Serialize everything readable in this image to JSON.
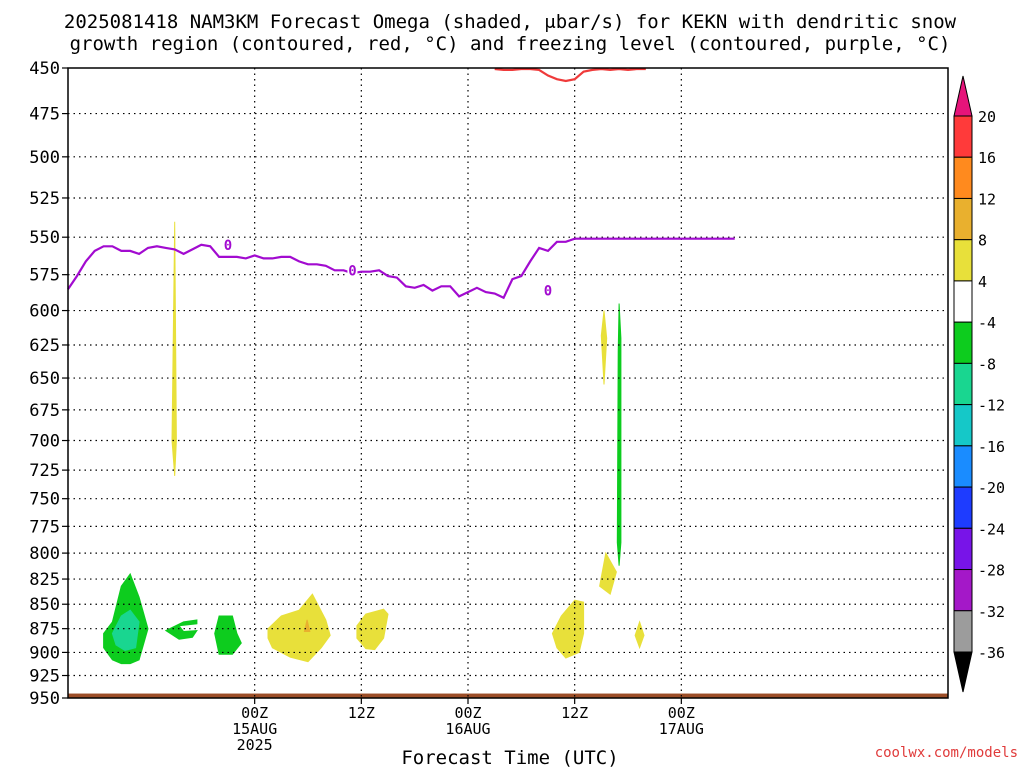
{
  "chart_data": {
    "type": "heatmap",
    "title_line1": "2025081418 NAM3KM Forecast Omega (shaded, μbar/s) for KEKN with dendritic snow",
    "title_line2": "growth region (contoured, red, °C) and freezing level (contoured, purple, °C)",
    "xlabel": "Forecast Time (UTC)",
    "ylabel": "",
    "y_ticks": [
      450,
      475,
      500,
      525,
      550,
      575,
      600,
      625,
      650,
      675,
      700,
      725,
      750,
      775,
      800,
      825,
      850,
      875,
      900,
      925,
      950
    ],
    "ylim": [
      450,
      950
    ],
    "y_scale": "log",
    "xlim": [
      -15,
      84
    ],
    "x_ticks": [
      {
        "hour": 6,
        "lines": [
          "00Z",
          "15AUG",
          "2025"
        ]
      },
      {
        "hour": 18,
        "lines": [
          "12Z"
        ]
      },
      {
        "hour": 30,
        "lines": [
          "00Z",
          "16AUG"
        ]
      },
      {
        "hour": 42,
        "lines": [
          "12Z"
        ]
      },
      {
        "hour": 54,
        "lines": [
          "00Z",
          "17AUG"
        ]
      }
    ],
    "grid": true,
    "colorbar": {
      "labels": [
        "20",
        "16",
        "12",
        "8",
        "4",
        "-4",
        "-8",
        "-12",
        "-16",
        "-20",
        "-24",
        "-28",
        "-32",
        "-36"
      ],
      "colors": [
        "#ff3a3a",
        "#ff8a1e",
        "#e9b02e",
        "#e8e03a",
        "#ffffff",
        "#0dcc1e",
        "#19d690",
        "#15c8c8",
        "#1a8cff",
        "#1e3cff",
        "#7814e8",
        "#a418c8",
        "#9c9c9c"
      ],
      "top_arrow_color": "#e6147a",
      "bottom_arrow_color": "#000000"
    },
    "freezing_level": {
      "name": "0",
      "color": "#a20bd0",
      "x": [
        -15,
        -14,
        -13,
        -12,
        -11,
        -10,
        -9,
        -8,
        -7,
        -6,
        -5,
        -4,
        -3,
        -2,
        -1,
        0,
        1,
        2,
        3,
        4,
        5,
        6,
        7,
        8,
        9,
        10,
        11,
        12,
        13,
        14,
        15,
        16,
        17,
        18,
        19,
        20,
        21,
        22,
        23,
        24,
        25,
        26,
        27,
        28,
        29,
        30,
        31,
        32,
        33,
        34,
        35,
        36,
        37,
        38,
        39,
        40,
        41,
        42,
        43,
        44,
        45,
        46,
        47,
        48,
        49,
        50,
        51,
        52,
        53,
        54,
        55,
        56,
        57,
        58,
        59,
        60
      ],
      "y": [
        585,
        576,
        566,
        559,
        556,
        556,
        559,
        559,
        561,
        557,
        556,
        557,
        558,
        561,
        558,
        555,
        556,
        563,
        563,
        563,
        564,
        562,
        564,
        564,
        563,
        563,
        566,
        568,
        568,
        569,
        572,
        572,
        574,
        573,
        573,
        572,
        576,
        577,
        583,
        584,
        582,
        586,
        583,
        583,
        590,
        587,
        584,
        587,
        588,
        591,
        578,
        576,
        566,
        557,
        559,
        553,
        553,
        551,
        551,
        551,
        551,
        551,
        551,
        551,
        551,
        551,
        551,
        551,
        551,
        551,
        551,
        551,
        551,
        551,
        551,
        551
      ],
      "labels": [
        {
          "x": 3,
          "y": 555,
          "text": "0"
        },
        {
          "x": 17,
          "y": 572,
          "text": "0"
        },
        {
          "x": 39,
          "y": 586,
          "text": "0"
        }
      ]
    },
    "dgz_top": {
      "color": "#ef3a3a",
      "x": [
        33,
        34,
        35,
        36,
        37,
        38,
        39,
        40,
        41,
        42,
        43,
        44,
        45,
        46,
        47,
        48,
        49,
        50
      ],
      "y": [
        450,
        451,
        451,
        450,
        450,
        451,
        454,
        456,
        457,
        456,
        452,
        451,
        450,
        451,
        450,
        451,
        450,
        450
      ]
    },
    "omega_regions": [
      {
        "name": "-8 to -4",
        "color": "#0dcc1e",
        "pts": [
          [
            -11,
            880
          ],
          [
            -10,
            868
          ],
          [
            -9,
            832
          ],
          [
            -8,
            820
          ],
          [
            -7,
            843
          ],
          [
            -6,
            875
          ],
          [
            -7,
            908
          ],
          [
            -8,
            912
          ],
          [
            -9,
            912
          ],
          [
            -10,
            908
          ],
          [
            -11,
            895
          ]
        ]
      },
      {
        "name": "-12 to -8",
        "color": "#19d690",
        "pts": [
          [
            -10,
            880
          ],
          [
            -9,
            862
          ],
          [
            -8,
            856
          ],
          [
            -7,
            868
          ],
          [
            -7.4,
            895
          ],
          [
            -8.6,
            898
          ],
          [
            -9.6,
            892
          ]
        ]
      },
      {
        "name": "-8 to -4",
        "color": "#0dcc1e",
        "pts": [
          [
            -4,
            877
          ],
          [
            -2,
            868
          ],
          [
            -0.5,
            866
          ],
          [
            -0.5,
            870
          ],
          [
            -2.5,
            872
          ],
          [
            -2,
            878
          ],
          [
            -0.5,
            877
          ],
          [
            -1,
            884
          ],
          [
            -2.5,
            886
          ]
        ]
      },
      {
        "name": "-8 to -4",
        "color": "#0dcc1e",
        "pts": [
          [
            2,
            862
          ],
          [
            3.5,
            862
          ],
          [
            4,
            880
          ],
          [
            4.5,
            890
          ],
          [
            3.5,
            902
          ],
          [
            2,
            902
          ],
          [
            1.5,
            880
          ]
        ]
      },
      {
        "name": "4 to 8",
        "color": "#e8e03a",
        "pts": [
          [
            -3.3,
            700
          ],
          [
            -3,
            540
          ],
          [
            -2.8,
            700
          ],
          [
            -3,
            730
          ]
        ]
      },
      {
        "name": "4 to 8",
        "color": "#e8e03a",
        "pts": [
          [
            7.5,
            875
          ],
          [
            9,
            862
          ],
          [
            11,
            856
          ],
          [
            12.5,
            840
          ],
          [
            14,
            866
          ],
          [
            14.5,
            882
          ],
          [
            13.5,
            895
          ],
          [
            12,
            910
          ],
          [
            10,
            905
          ],
          [
            8,
            895
          ],
          [
            7.5,
            885
          ]
        ]
      },
      {
        "name": "8 to 12",
        "color": "#e9b02e",
        "pts": [
          [
            11.6,
            878
          ],
          [
            11.9,
            866
          ],
          [
            12.2,
            878
          ]
        ]
      },
      {
        "name": "4 to 8",
        "color": "#e8e03a",
        "pts": [
          [
            17.5,
            872
          ],
          [
            18.5,
            860
          ],
          [
            20.5,
            855
          ],
          [
            21,
            860
          ],
          [
            20.5,
            885
          ],
          [
            19.5,
            897
          ],
          [
            18.5,
            896
          ],
          [
            17.5,
            885
          ]
        ]
      },
      {
        "name": "4 to 8",
        "color": "#e8e03a",
        "pts": [
          [
            39.5,
            880
          ],
          [
            40.5,
            862
          ],
          [
            42,
            846
          ],
          [
            43,
            848
          ],
          [
            43,
            880
          ],
          [
            42.5,
            900
          ],
          [
            41,
            906
          ],
          [
            40,
            895
          ]
        ]
      },
      {
        "name": "4 to 8",
        "color": "#e8e03a",
        "pts": [
          [
            45,
            618
          ],
          [
            45.3,
            600
          ],
          [
            45.6,
            620
          ],
          [
            45.3,
            655
          ]
        ]
      },
      {
        "name": "4 to 8",
        "color": "#e8e03a",
        "pts": [
          [
            44.8,
            832
          ],
          [
            45.5,
            800
          ],
          [
            46.7,
            818
          ],
          [
            46,
            840
          ]
        ]
      },
      {
        "name": "4 to 8",
        "color": "#e8e03a",
        "pts": [
          [
            48.8,
            882
          ],
          [
            49.3,
            868
          ],
          [
            49.8,
            882
          ],
          [
            49.3,
            895
          ]
        ]
      },
      {
        "name": "-8 to -4",
        "color": "#0dcc1e",
        "pts": [
          [
            46.9,
            630
          ],
          [
            47,
            595
          ],
          [
            47.2,
            620
          ],
          [
            47.2,
            790
          ],
          [
            47,
            812
          ],
          [
            46.8,
            790
          ]
        ]
      }
    ],
    "ground": {
      "color": "#9c4e28",
      "top_pressure": 945
    },
    "watermark": "coolwx.com/models"
  }
}
